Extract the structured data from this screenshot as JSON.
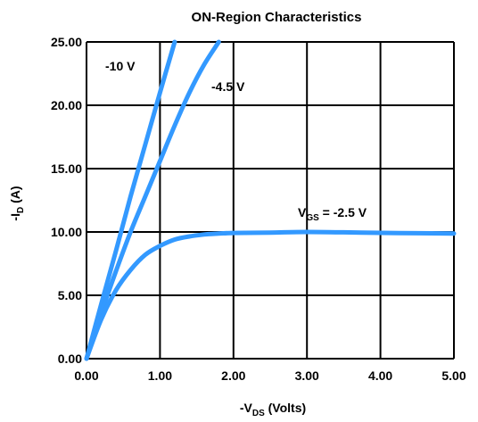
{
  "chart_data": {
    "type": "line",
    "title": "ON-Region Characteristics",
    "xlabel": {
      "main": "-V",
      "sub": "DS",
      "rest": " (Volts)"
    },
    "ylabel": {
      "main": "-I",
      "sub": "D",
      "rest": " (A)"
    },
    "xlim": [
      0,
      5
    ],
    "ylim": [
      0,
      25
    ],
    "xticks": [
      0,
      1,
      2,
      3,
      4,
      5
    ],
    "xtick_labels": [
      "0.00",
      "1.00",
      "2.00",
      "3.00",
      "4.00",
      "5.00"
    ],
    "yticks": [
      0,
      5,
      10,
      15,
      20,
      25
    ],
    "ytick_labels": [
      "0.00",
      "5.00",
      "10.00",
      "15.00",
      "20.00",
      "25.00"
    ],
    "grid": true,
    "line_color": "#3399ff",
    "series": [
      {
        "annotation": "-10 V",
        "x": [
          0,
          0.2,
          0.4,
          0.6,
          0.8,
          1.0,
          1.2
        ],
        "y": [
          0,
          4.3,
          8.5,
          12.8,
          16.9,
          21.0,
          25.0
        ]
      },
      {
        "annotation": "-4.5 V",
        "x": [
          0,
          0.2,
          0.4,
          0.6,
          0.8,
          1.0,
          1.2,
          1.4,
          1.6,
          1.8
        ],
        "y": [
          0,
          3.6,
          6.9,
          10.0,
          12.8,
          15.6,
          18.4,
          21.0,
          23.2,
          25.0
        ]
      },
      {
        "annotation": {
          "main": "V",
          "sub": "GS",
          "rest": " = -2.5 V"
        },
        "x": [
          0,
          0.2,
          0.4,
          0.6,
          0.8,
          1.0,
          1.2,
          1.4,
          1.6,
          1.8,
          2.0,
          2.5,
          3.0,
          3.5,
          4.0,
          4.5,
          5.0
        ],
        "y": [
          0,
          3.1,
          5.4,
          7.0,
          8.2,
          8.9,
          9.4,
          9.65,
          9.8,
          9.87,
          9.92,
          9.95,
          10.0,
          9.97,
          9.93,
          9.9,
          9.88
        ]
      }
    ]
  }
}
